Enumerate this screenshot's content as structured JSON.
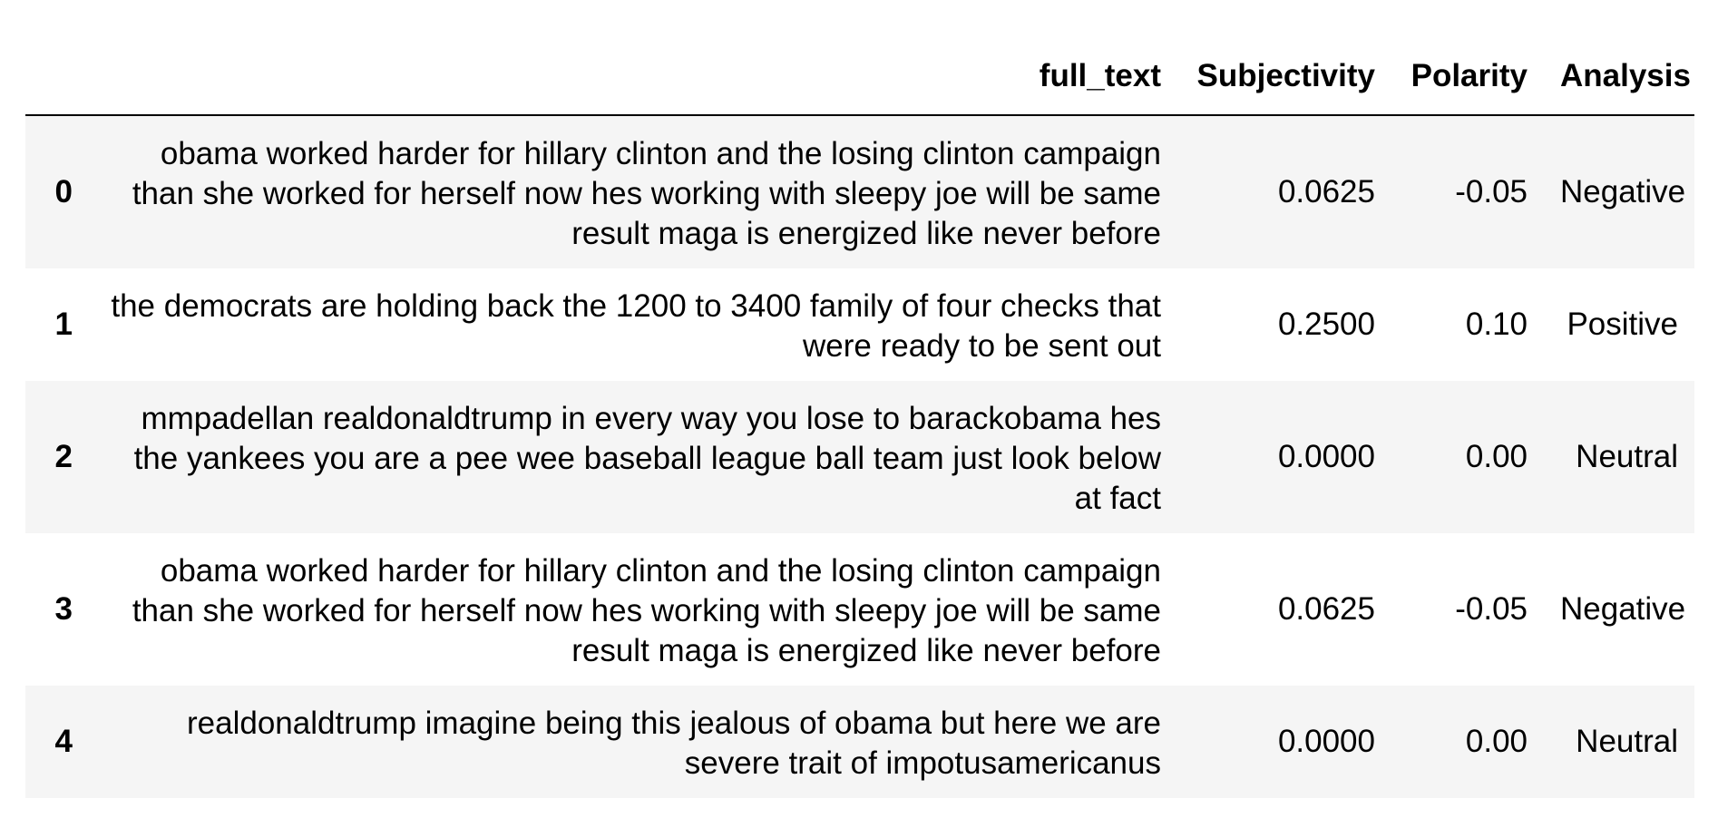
{
  "columns": [
    "",
    "full_text",
    "Subjectivity",
    "Polarity",
    "Analysis"
  ],
  "rows": [
    {
      "index": "0",
      "full_text": "obama worked harder for hillary clinton and the losing clinton campaign than she worked for herself now hes working with sleepy joe will be same result maga is energized like never before",
      "subjectivity": "0.0625",
      "polarity": "-0.05",
      "analysis": "Negative"
    },
    {
      "index": "1",
      "full_text": "the democrats are holding back the 1200 to 3400 family of four checks that were ready to be sent out",
      "subjectivity": "0.2500",
      "polarity": "0.10",
      "analysis": "Positive"
    },
    {
      "index": "2",
      "full_text": "mmpadellan realdonaldtrump in every way you lose to barackobama hes the yankees you are a pee wee baseball league ball team just look below at fact",
      "subjectivity": "0.0000",
      "polarity": "0.00",
      "analysis": "Neutral"
    },
    {
      "index": "3",
      "full_text": "obama worked harder for hillary clinton and the losing clinton campaign than she worked for herself now hes working with sleepy joe will be same result maga is energized like never before",
      "subjectivity": "0.0625",
      "polarity": "-0.05",
      "analysis": "Negative"
    },
    {
      "index": "4",
      "full_text": "realdonaldtrump imagine being this jealous of obama but here we are severe trait of impotusamericanus",
      "subjectivity": "0.0000",
      "polarity": "0.00",
      "analysis": "Neutral"
    }
  ]
}
